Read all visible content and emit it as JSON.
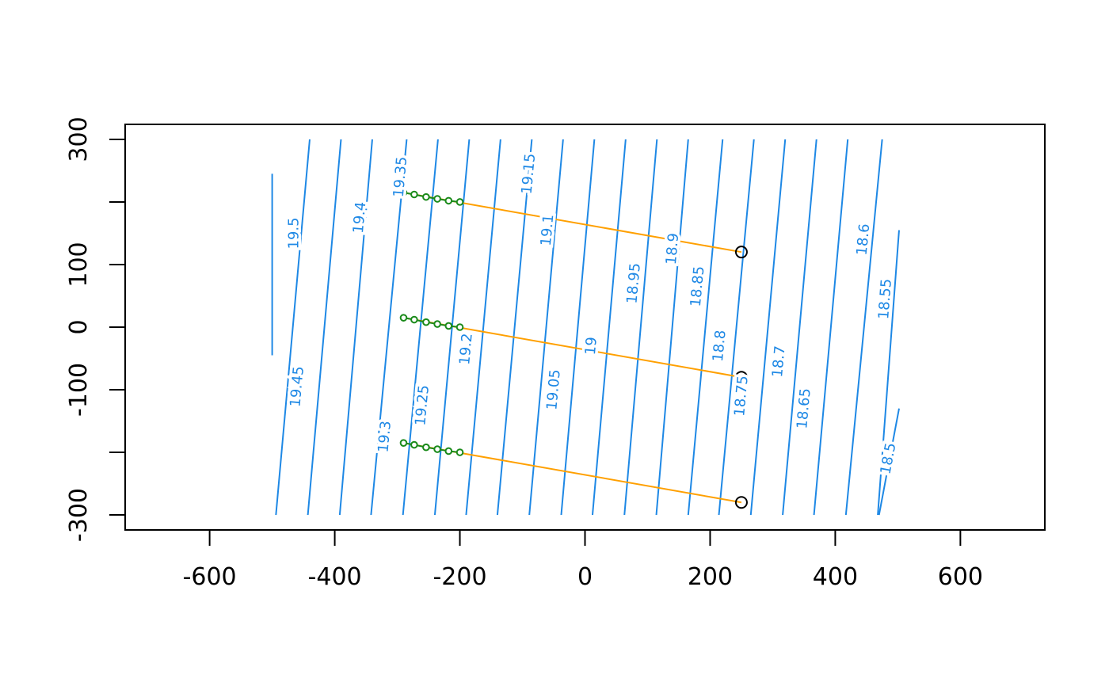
{
  "chart_data": {
    "type": "contour",
    "title": "",
    "xlabel": "",
    "ylabel": "",
    "xlim": [
      -735,
      735
    ],
    "ylim": [
      -324,
      324
    ],
    "x_ticks": [
      -600,
      -400,
      -200,
      0,
      200,
      400,
      600
    ],
    "y_ticks": [
      -300,
      -200,
      -100,
      0,
      100,
      200,
      300
    ],
    "x_tick_labels": [
      "-600",
      "-400",
      "-200",
      "0",
      "200",
      "400",
      "600"
    ],
    "y_tick_labels": [
      "-300",
      "",
      "-100",
      "0",
      "100",
      "",
      "300"
    ],
    "grid": false,
    "colors": {
      "contour": "#1e88e5",
      "transect": "#ffa000",
      "samples": "#1a8a1a",
      "receivers": "#000000",
      "axes": "#000000"
    },
    "contours": [
      {
        "label": "19.5",
        "bottom": [
          -500,
          -45
        ],
        "top": [
          -500,
          245
        ],
        "label_at": [
          -465,
          150
        ]
      },
      {
        "label": "19.45",
        "bottom": [
          -494,
          -300
        ],
        "top": [
          -440,
          300
        ],
        "label_at": [
          -460,
          -95
        ]
      },
      {
        "label": "19.4",
        "bottom": [
          -443,
          -300
        ],
        "top": [
          -390,
          300
        ],
        "label_at": [
          -360,
          175
        ]
      },
      {
        "label": "19.35",
        "bottom": [
          -392,
          -300
        ],
        "top": [
          -340,
          300
        ],
        "label_at": [
          -295,
          240
        ]
      },
      {
        "label": "19.3",
        "bottom": [
          -342,
          -300
        ],
        "top": [
          -285,
          300
        ],
        "label_at": [
          -320,
          -175
        ]
      },
      {
        "label": "19.25",
        "bottom": [
          -291,
          -300
        ],
        "top": [
          -235,
          300
        ],
        "label_at": [
          -260,
          -125
        ]
      },
      {
        "label": "19.2",
        "bottom": [
          -240,
          -300
        ],
        "top": [
          -185,
          300
        ],
        "label_at": [
          -190,
          -35
        ]
      },
      {
        "label": "",
        "bottom": [
          -190,
          -300
        ],
        "top": [
          -135,
          300
        ],
        "label_at": null
      },
      {
        "label": "19.15",
        "bottom": [
          -140,
          -300
        ],
        "top": [
          -85,
          300
        ],
        "label_at": [
          -90,
          245
        ]
      },
      {
        "label": "19.1",
        "bottom": [
          -89,
          -300
        ],
        "top": [
          -35,
          300
        ],
        "label_at": [
          -60,
          155
        ]
      },
      {
        "label": "19.05",
        "bottom": [
          -38,
          -300
        ],
        "top": [
          15,
          300
        ],
        "label_at": [
          -50,
          -100
        ]
      },
      {
        "label": "19",
        "bottom": [
          12,
          -300
        ],
        "top": [
          65,
          300
        ],
        "label_at": [
          10,
          -30
        ]
      },
      {
        "label": "18.95",
        "bottom": [
          63,
          -300
        ],
        "top": [
          115,
          300
        ],
        "label_at": [
          78,
          70
        ]
      },
      {
        "label": "18.9",
        "bottom": [
          114,
          -300
        ],
        "top": [
          165,
          300
        ],
        "label_at": [
          140,
          125
        ]
      },
      {
        "label": "18.85",
        "bottom": [
          165,
          -300
        ],
        "top": [
          220,
          300
        ],
        "label_at": [
          180,
          65
        ]
      },
      {
        "label": "18.8",
        "bottom": [
          214,
          -300
        ],
        "top": [
          270,
          300
        ],
        "label_at": [
          215,
          -30
        ]
      },
      {
        "label": "18.75",
        "bottom": [
          265,
          -300
        ],
        "top": [
          320,
          300
        ],
        "label_at": [
          250,
          -110
        ]
      },
      {
        "label": "18.7",
        "bottom": [
          316,
          -300
        ],
        "top": [
          370,
          300
        ],
        "label_at": [
          310,
          -55
        ]
      },
      {
        "label": "18.65",
        "bottom": [
          366,
          -300
        ],
        "top": [
          420,
          300
        ],
        "label_at": [
          350,
          -130
        ]
      },
      {
        "label": "18.6",
        "bottom": [
          417,
          -300
        ],
        "top": [
          475,
          300
        ],
        "label_at": [
          445,
          140
        ]
      },
      {
        "label": "18.55",
        "bottom": [
          468,
          -300
        ],
        "top": [
          502,
          155
        ],
        "label_at": [
          480,
          45
        ]
      },
      {
        "label": "18.5",
        "bottom": [
          470,
          -300
        ],
        "top": [
          502,
          -130
        ],
        "label_at": [
          485,
          -210
        ]
      }
    ],
    "transects": [
      {
        "from": [
          -290,
          215
        ],
        "to": [
          250,
          120
        ]
      },
      {
        "from": [
          -290,
          15
        ],
        "to": [
          250,
          -80
        ]
      },
      {
        "from": [
          -290,
          -185
        ],
        "to": [
          250,
          -280
        ]
      }
    ],
    "sample_points": [
      [
        -290,
        215
      ],
      [
        -273,
        212
      ],
      [
        -254,
        208
      ],
      [
        -236,
        205
      ],
      [
        -218,
        202
      ],
      [
        -200,
        200
      ],
      [
        -290,
        15
      ],
      [
        -273,
        12
      ],
      [
        -254,
        8
      ],
      [
        -236,
        5
      ],
      [
        -218,
        2
      ],
      [
        -200,
        0
      ],
      [
        -290,
        -185
      ],
      [
        -273,
        -188
      ],
      [
        -254,
        -192
      ],
      [
        -236,
        -195
      ],
      [
        -218,
        -198
      ],
      [
        -200,
        -200
      ]
    ],
    "receiver_points": [
      [
        250,
        120
      ],
      [
        250,
        -80
      ],
      [
        250,
        -280
      ]
    ]
  }
}
